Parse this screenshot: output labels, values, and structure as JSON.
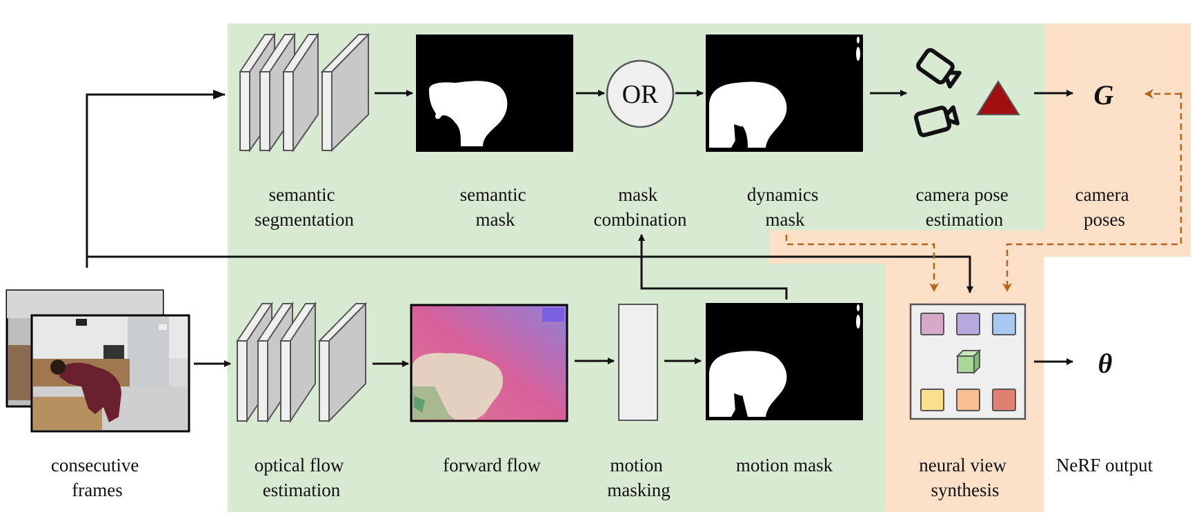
{
  "labels": {
    "semantic_segmentation": [
      "semantic",
      "segmentation"
    ],
    "semantic_mask": [
      "semantic",
      "mask"
    ],
    "mask_combination": [
      "mask",
      "combination"
    ],
    "dynamics_mask": [
      "dynamics",
      "mask"
    ],
    "camera_pose_estimation": [
      "camera pose",
      "estimation"
    ],
    "camera_poses": [
      "camera",
      "poses"
    ],
    "consecutive_frames": [
      "consecutive",
      "frames"
    ],
    "optical_flow_estimation": [
      "optical flow",
      "estimation"
    ],
    "forward_flow": [
      "forward flow"
    ],
    "motion_masking": [
      "motion",
      "masking"
    ],
    "motion_mask": [
      "motion mask"
    ],
    "neural_view_synthesis": [
      "neural view",
      "synthesis"
    ],
    "nerf_output": [
      "NeRF output"
    ]
  },
  "symbols": {
    "poses": "G",
    "params": "θ",
    "or_op": "OR"
  },
  "colors": {
    "green_region": "#d9ead3",
    "orange_region": "#fce0c8",
    "layer_fill": "#c8c8c8",
    "layer_face": "#efefef",
    "dashed_arrow": "#b8621a",
    "triangle": "#a01010",
    "tile_1": "#d8a8c8",
    "tile_2": "#b8a8e0",
    "tile_3": "#a8c8f0",
    "tile_4": "#f8e090",
    "tile_5": "#f8c090",
    "tile_6": "#e08070",
    "cube": "#a8d898"
  }
}
